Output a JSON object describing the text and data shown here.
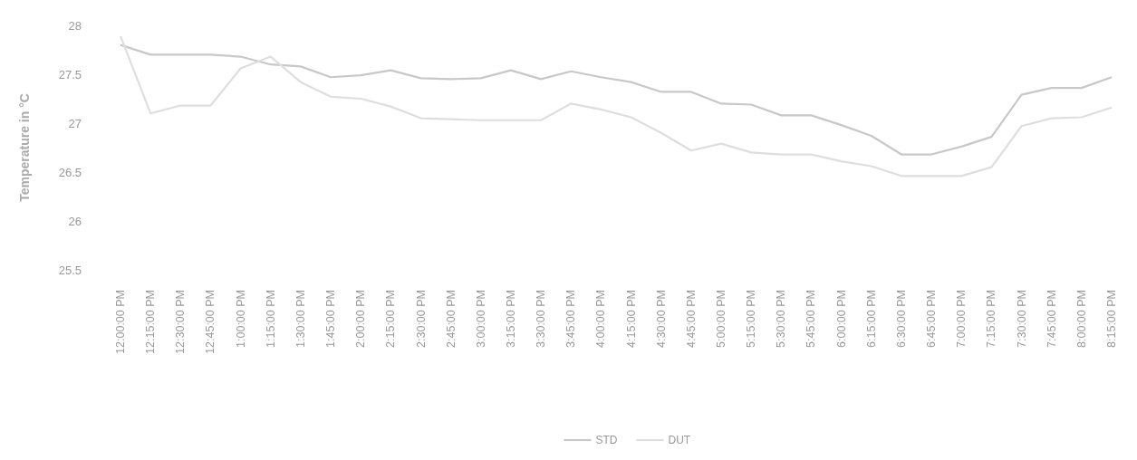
{
  "chart_data": {
    "type": "line",
    "ylabel": "Temperature in °C",
    "categories": [
      "12:00:00 PM",
      "12:15:00 PM",
      "12:30:00 PM",
      "12:45:00 PM",
      "1:00:00 PM",
      "1:15:00 PM",
      "1:30:00 PM",
      "1:45:00 PM",
      "2:00:00 PM",
      "2:15:00 PM",
      "2:30:00 PM",
      "2:45:00 PM",
      "3:00:00 PM",
      "3:15:00 PM",
      "3:30:00 PM",
      "3:45:00 PM",
      "4:00:00 PM",
      "4:15:00 PM",
      "4:30:00 PM",
      "4:45:00 PM",
      "5:00:00 PM",
      "5:15:00 PM",
      "5:30:00 PM",
      "5:45:00 PM",
      "6:00:00 PM",
      "6:15:00 PM",
      "6:30:00 PM",
      "6:45:00 PM",
      "7:00:00 PM",
      "7:15:00 PM",
      "7:30:00 PM",
      "7:45:00 PM",
      "8:00:00 PM",
      "8:15:00 PM"
    ],
    "series": [
      {
        "name": "STD",
        "color": "#c8c8c8",
        "values": [
          27.8,
          27.7,
          27.7,
          27.7,
          27.68,
          27.6,
          27.58,
          27.47,
          27.49,
          27.54,
          27.46,
          27.45,
          27.46,
          27.54,
          27.45,
          27.53,
          27.47,
          27.42,
          27.32,
          27.32,
          27.2,
          27.19,
          27.08,
          27.08,
          26.98,
          26.87,
          26.68,
          26.68,
          26.76,
          26.86,
          27.29,
          27.36,
          27.36,
          27.47
        ]
      },
      {
        "name": "DUT",
        "color": "#dedede",
        "values": [
          27.89,
          27.1,
          27.18,
          27.18,
          27.56,
          27.68,
          27.42,
          27.27,
          27.25,
          27.17,
          27.05,
          27.04,
          27.03,
          27.03,
          27.03,
          27.2,
          27.14,
          27.06,
          26.9,
          26.72,
          26.79,
          26.7,
          26.68,
          26.68,
          26.61,
          26.56,
          26.46,
          26.46,
          26.46,
          26.55,
          26.97,
          27.05,
          27.06,
          27.16
        ]
      }
    ],
    "ylim": [
      25.5,
      28
    ],
    "yticks": [
      25.5,
      26,
      26.5,
      27,
      27.5,
      28
    ],
    "grid": false,
    "legend": "bottom"
  }
}
